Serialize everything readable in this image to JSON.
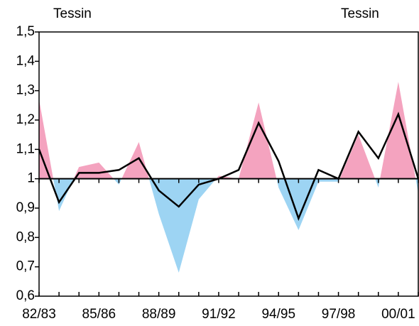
{
  "chart_data": {
    "type": "line",
    "annotations": [
      "Tessin",
      "Tessin"
    ],
    "categories": [
      "82/83",
      null,
      null,
      "85/86",
      null,
      null,
      "88/89",
      null,
      null,
      "91/92",
      null,
      null,
      "94/95",
      null,
      null,
      "97/98",
      null,
      null,
      "00/01",
      null
    ],
    "baseline": 1,
    "series": [
      {
        "type": "area",
        "color": "#f4a3bf",
        "negative_color": "#9dd4f3",
        "values": [
          1.27,
          0.89,
          1.04,
          1.055,
          0.98,
          1.125,
          0.88,
          0.68,
          0.93,
          1.01,
          1.0,
          1.26,
          0.97,
          0.825,
          0.99,
          0.99,
          1.15,
          0.97,
          1.33,
          0.95
        ]
      },
      {
        "type": "line",
        "color": "#000000",
        "values": [
          1.1,
          0.92,
          1.02,
          1.02,
          1.03,
          1.07,
          0.96,
          0.905,
          0.98,
          1.0,
          1.03,
          1.19,
          1.06,
          0.865,
          1.03,
          1.0,
          1.16,
          1.07,
          1.22,
          1.0
        ]
      }
    ],
    "ylim": [
      0.6,
      1.5
    ],
    "yticks": [
      {
        "value": 0.6,
        "label": "0,6"
      },
      {
        "value": 0.7,
        "label": "0,7"
      },
      {
        "value": 0.8,
        "label": "0,8"
      },
      {
        "value": 0.9,
        "label": "0,9"
      },
      1,
      {
        "value": 1.1,
        "label": "1,1"
      },
      {
        "value": 1.2,
        "label": "1,2"
      },
      {
        "value": 1.3,
        "label": "1,3"
      },
      {
        "value": 1.4,
        "label": "1,4"
      },
      {
        "value": 1.5,
        "label": "1,5"
      }
    ]
  }
}
